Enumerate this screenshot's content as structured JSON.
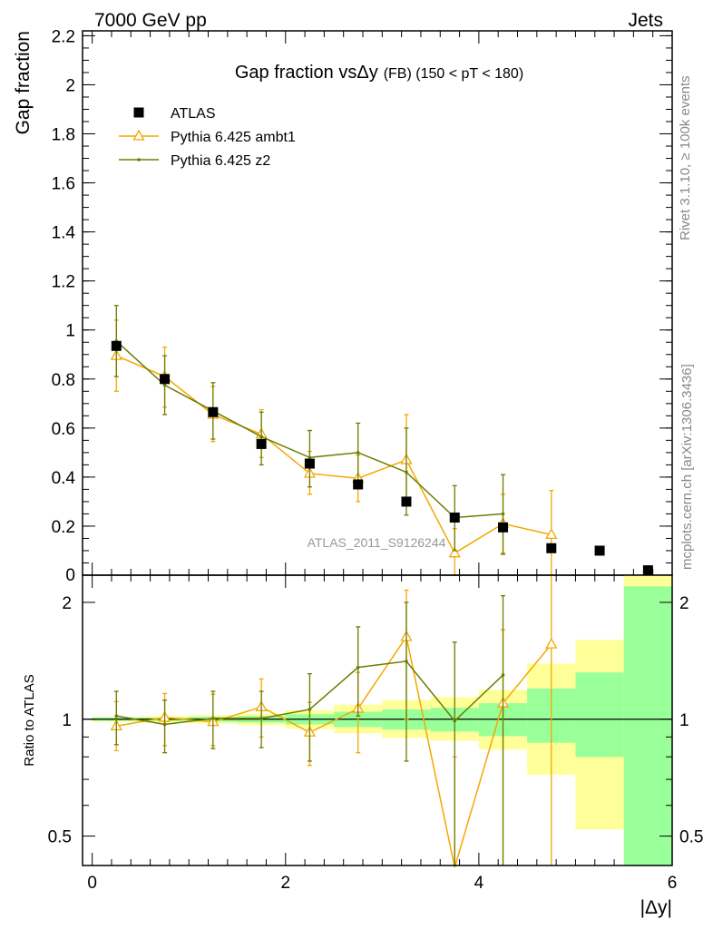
{
  "header": {
    "left": "7000 GeV pp",
    "right": "Jets"
  },
  "side_labels": {
    "rivet": "Rivet 3.1.10, ≥ 100k events",
    "mcplots": "mcplots.cern.ch [arXiv:1306.3436]"
  },
  "chart_data": [
    {
      "type": "scatter",
      "panel": "main",
      "title_main": "Gap fraction vs",
      "title_symbol": "Δy",
      "title_suffix": "(FB) (150 < pT < 180)",
      "ylabel": "Gap fraction",
      "watermark": "ATLAS_2011_S9126244",
      "xlim": [
        -0.1,
        6.0
      ],
      "ylim": [
        0,
        2.22
      ],
      "yticks": [
        0.2,
        0.4,
        0.6,
        0.8,
        1,
        1.2,
        1.4,
        1.6,
        1.8,
        2,
        2.2
      ],
      "ytick_labels": [
        "0.2",
        "0.4",
        "0.6",
        "0.8",
        "1",
        "1.2",
        "1.4",
        "1.6",
        "1.8",
        "2",
        "2.2"
      ],
      "bottom_tick_label": "0",
      "legend_position": "top-left",
      "series": [
        {
          "name": "ATLAS",
          "color": "#000000",
          "marker": "square",
          "x": [
            0.25,
            0.75,
            1.25,
            1.75,
            2.25,
            2.75,
            3.25,
            3.75,
            4.25,
            4.75,
            5.25,
            5.75
          ],
          "y": [
            0.935,
            0.8,
            0.665,
            0.535,
            0.455,
            0.37,
            0.3,
            0.235,
            0.195,
            0.11,
            0.1,
            0.02
          ],
          "yerr": [
            0.01,
            0.01,
            0.01,
            0.01,
            0.01,
            0.01,
            0.01,
            0.01,
            0.01,
            0.01,
            0.01,
            0.01
          ]
        },
        {
          "name": "Pythia 6.425 ambt1",
          "color": "#f5a700",
          "marker": "triangle",
          "x": [
            0.25,
            0.75,
            1.25,
            1.75,
            2.25,
            2.75,
            3.25,
            3.75,
            4.25,
            4.75
          ],
          "y": [
            0.895,
            0.81,
            0.655,
            0.575,
            0.415,
            0.395,
            0.47,
            0.09,
            0.21,
            0.165
          ],
          "ylow": [
            0.75,
            0.685,
            0.545,
            0.48,
            0.33,
            0.3,
            0.29,
            0.0,
            0.09,
            0.0
          ],
          "yhigh": [
            1.04,
            0.93,
            0.77,
            0.675,
            0.505,
            0.49,
            0.655,
            0.19,
            0.33,
            0.345
          ]
        },
        {
          "name": "Pythia 6.425 z2",
          "color": "#6b7d00",
          "marker": "dot",
          "x": [
            0.25,
            0.75,
            1.25,
            1.75,
            2.25,
            2.75,
            3.25,
            3.75,
            4.25
          ],
          "y": [
            0.955,
            0.775,
            0.67,
            0.565,
            0.48,
            0.5,
            0.42,
            0.235,
            0.25
          ],
          "ylow": [
            0.81,
            0.655,
            0.555,
            0.45,
            0.36,
            0.38,
            0.245,
            0.1,
            0.085
          ],
          "yhigh": [
            1.1,
            0.895,
            0.785,
            0.665,
            0.59,
            0.62,
            0.6,
            0.365,
            0.41
          ]
        }
      ]
    },
    {
      "type": "line",
      "panel": "ratio",
      "ylabel": "Ratio to ATLAS",
      "xlabel": "|Δy|",
      "xlim": [
        -0.1,
        6.0
      ],
      "ylim": [
        0.42,
        2.35
      ],
      "yscale": "log",
      "xticks": [
        0,
        2,
        4,
        6
      ],
      "xtick_labels": [
        "0",
        "2",
        "4",
        "6"
      ],
      "yticks": [
        0.5,
        1,
        2
      ],
      "ytick_labels": [
        "0.5",
        "1",
        "2"
      ],
      "bands": {
        "bin_edges": [
          0,
          0.5,
          1,
          1.5,
          2,
          2.5,
          3,
          3.5,
          4,
          4.5,
          5,
          5.5,
          6
        ],
        "yellow_low": [
          0.985,
          0.98,
          0.975,
          0.965,
          0.945,
          0.92,
          0.895,
          0.88,
          0.835,
          0.72,
          0.52,
          0.42
        ],
        "yellow_high": [
          1.015,
          1.02,
          1.025,
          1.035,
          1.055,
          1.09,
          1.12,
          1.14,
          1.19,
          1.39,
          1.6,
          2.35
        ],
        "green_low": [
          0.99,
          0.99,
          0.985,
          0.98,
          0.97,
          0.955,
          0.94,
          0.93,
          0.905,
          0.87,
          0.8,
          0.42
        ],
        "green_high": [
          1.01,
          1.01,
          1.015,
          1.02,
          1.03,
          1.045,
          1.06,
          1.07,
          1.1,
          1.2,
          1.32,
          2.2
        ]
      },
      "series": [
        {
          "name": "Pythia 6.425 ambt1",
          "color": "#f5a700",
          "marker": "triangle",
          "x": [
            0.25,
            0.75,
            1.25,
            1.75,
            2.25,
            2.75,
            3.25,
            3.75,
            4.25,
            4.75
          ],
          "y": [
            0.96,
            1.01,
            0.985,
            1.075,
            0.925,
            1.065,
            1.63,
            0.38,
            1.1,
            1.56
          ],
          "ylow": [
            0.83,
            0.855,
            0.855,
            0.9,
            0.76,
            0.82,
            1.0,
            0.2,
            0.4,
            0.2
          ],
          "yhigh": [
            1.11,
            1.165,
            1.16,
            1.27,
            1.105,
            1.32,
            2.15,
            0.8,
            1.7,
            3.0
          ]
        },
        {
          "name": "Pythia 6.425 z2",
          "color": "#6b7d00",
          "marker": "dot",
          "x": [
            0.25,
            0.75,
            1.25,
            1.75,
            2.25,
            2.75,
            3.25,
            3.75,
            4.25
          ],
          "y": [
            1.02,
            0.97,
            1.005,
            1.005,
            1.06,
            1.36,
            1.41,
            0.99,
            1.3
          ],
          "ylow": [
            0.86,
            0.82,
            0.84,
            0.845,
            0.78,
            1.02,
            0.78,
            0.42,
            0.4
          ],
          "yhigh": [
            1.18,
            1.12,
            1.18,
            1.18,
            1.31,
            1.73,
            2.0,
            1.58,
            2.08
          ]
        }
      ]
    }
  ]
}
